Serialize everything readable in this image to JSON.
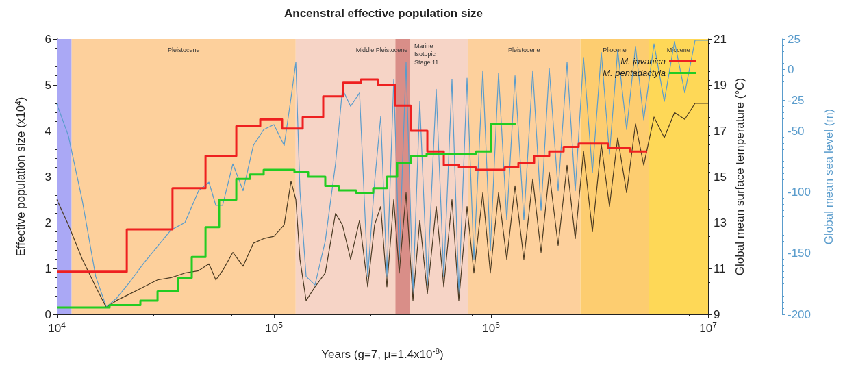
{
  "chart_data": {
    "type": "step",
    "title": "Ancenstral effective population size",
    "xlabel": "Years (g=7, μ=1.4x10$^{-8}$)",
    "ylabel": "Effective population size (x10$^{4}$)",
    "y2label": "Global mean surface temperature (°C)",
    "y3label": "Global mean sea level (m)",
    "log": "x",
    "xlim": [
      10000,
      10000000
    ],
    "xticks": [
      {
        "value": 10000,
        "label": "10$^{4}$"
      },
      {
        "value": 100000,
        "label": "10$^{5}$"
      },
      {
        "value": 1000000,
        "label": "10$^{6}$"
      },
      {
        "value": 10000000,
        "label": "10$^{7}$"
      }
    ],
    "ylim": [
      0,
      6
    ],
    "yticks": [
      0,
      1,
      2,
      3,
      4,
      5,
      6
    ],
    "y2lim": [
      9,
      21
    ],
    "y2ticks": [
      9,
      11,
      13,
      15,
      17,
      19,
      21
    ],
    "y3lim": [
      -200,
      25
    ],
    "y3ticks": [
      -200,
      -150,
      -100,
      -50,
      -25,
      0,
      25
    ],
    "grid": false,
    "legend": "top right",
    "bands": [
      {
        "axis": "x",
        "from": 10000,
        "to": 11700,
        "color": "#aaa8f5"
      },
      {
        "axis": "x",
        "from": 11700,
        "to": 126000,
        "label": "Pleistocene",
        "color": "#fdd09c"
      },
      {
        "axis": "x",
        "from": 126000,
        "to": 781000,
        "label": "Middle Pleistocene",
        "color": "#f6d4c6"
      },
      {
        "axis": "x",
        "from": 363000,
        "to": 424000,
        "label": "Marine Isotopic Stage 11",
        "color": "#d98e88"
      },
      {
        "axis": "x",
        "from": 781000,
        "to": 2580000,
        "label": "Pleistocene",
        "color": "#fdd09c"
      },
      {
        "axis": "x",
        "from": 2580000,
        "to": 5330000,
        "label": "Pliocene",
        "color": "#fdcd70"
      },
      {
        "axis": "x",
        "from": 5330000,
        "to": 10000000,
        "label": "Miocene",
        "color": "#fed857"
      }
    ],
    "series": [
      {
        "type": "line",
        "axis": "y3",
        "color": "#5a9ccc",
        "x": [
          10000,
          11300,
          13100,
          15100,
          16900,
          18800,
          21800,
          25200,
          33600,
          38900,
          45000,
          50200,
          54000,
          58000,
          64700,
          72100,
          80400,
          89700,
          100000,
          111500,
          119900,
          126200,
          131800,
          140700,
          154600,
          172400,
          192200,
          206800,
          225600,
          248000,
          270500,
          290900,
          310500,
          331500,
          356500,
          377800,
          406300,
          437000,
          469800,
          509000,
          559300,
          605900,
          661000,
          710700,
          775600,
          834000,
          916600,
          992600,
          1083000,
          1182000,
          1290000,
          1417000,
          1557000,
          1700000,
          1854000,
          2038000,
          2240000,
          2443000,
          2667000,
          2931000,
          3221000,
          3513000,
          3833000,
          4214000,
          4630000,
          5052000,
          5635000,
          6283000,
          7004000,
          7810000,
          8712000,
          10000000
        ],
        "values": [
          -28,
          -54,
          -107,
          -169,
          -194,
          -187,
          -173,
          -158,
          -131,
          -125,
          -99,
          -92,
          -111,
          -111,
          -77,
          -99,
          -62,
          -49,
          -45,
          -62,
          -23,
          6,
          -99,
          -169,
          -176,
          -140,
          -77,
          -16,
          -30,
          -19,
          -169,
          -92,
          -38,
          -169,
          -8,
          -155,
          6,
          -183,
          -26,
          -176,
          -16,
          -169,
          -8,
          -183,
          -7,
          -155,
          -1,
          -148,
          -3,
          -123,
          -5,
          -123,
          -1,
          -115,
          1,
          -99,
          6,
          -99,
          10,
          -84,
          14,
          -69,
          16,
          -49,
          19,
          -41,
          21,
          -26,
          23,
          -19,
          24,
          24
        ]
      },
      {
        "type": "line",
        "axis": "y2",
        "color": "#4a3a22",
        "x": [
          10000,
          11300,
          13100,
          15100,
          16900,
          18800,
          21800,
          25200,
          29100,
          33600,
          38900,
          45000,
          50200,
          54000,
          58000,
          64700,
          72100,
          80400,
          89700,
          100000,
          111500,
          119900,
          126200,
          131800,
          140700,
          154600,
          172400,
          192200,
          206800,
          225600,
          248000,
          270500,
          290900,
          310500,
          331500,
          356500,
          377800,
          406300,
          437000,
          469800,
          509000,
          559300,
          605900,
          661000,
          710700,
          775600,
          834000,
          916600,
          992600,
          1083000,
          1182000,
          1290000,
          1417000,
          1557000,
          1700000,
          1854000,
          2038000,
          2240000,
          2443000,
          2667000,
          2931000,
          3221000,
          3513000,
          3833000,
          4214000,
          4630000,
          5052000,
          5635000,
          6283000,
          7004000,
          7810000,
          8712000,
          10000000
        ],
        "values": [
          14.0,
          12.9,
          11.4,
          10.2,
          9.3,
          9.6,
          9.9,
          10.2,
          10.5,
          10.6,
          10.8,
          10.9,
          11.2,
          10.5,
          10.9,
          11.7,
          11.1,
          12.1,
          12.3,
          12.4,
          12.9,
          14.8,
          14.0,
          11.4,
          9.6,
          10.2,
          10.8,
          13.4,
          12.9,
          11.4,
          13.1,
          10.2,
          12.9,
          13.7,
          10.2,
          14.0,
          10.8,
          14.3,
          9.6,
          13.1,
          9.9,
          13.7,
          10.2,
          14.0,
          9.6,
          13.7,
          10.8,
          14.3,
          10.8,
          14.3,
          11.4,
          14.6,
          11.4,
          14.9,
          11.7,
          15.2,
          12.0,
          15.5,
          12.3,
          16.1,
          12.6,
          16.4,
          13.7,
          16.7,
          14.3,
          17.3,
          15.5,
          17.6,
          16.7,
          17.8,
          17.5,
          18.2,
          18.2
        ]
      },
      {
        "name": "M. javanica",
        "color": "#ee2020",
        "x": [
          10000,
          21000,
          34100,
          48400,
          67100,
          86500,
          109100,
          135700,
          168700,
          208300,
          251500,
          301600,
          361700,
          427500,
          509000,
          606000,
          711000,
          852000,
          1156000,
          1337000,
          1580000,
          1854000,
          2160000,
          2534000,
          3462000,
          4369000,
          5238000
        ],
        "values": [
          0.93,
          1.85,
          2.75,
          3.45,
          4.1,
          4.25,
          4.05,
          4.3,
          4.75,
          5.05,
          5.12,
          5.0,
          4.55,
          4.0,
          3.55,
          3.25,
          3.2,
          3.15,
          3.2,
          3.3,
          3.45,
          3.55,
          3.65,
          3.72,
          3.62,
          3.55,
          3.55
        ]
      },
      {
        "name": "M. pentadactyla",
        "color": "#22cc22",
        "x": [
          10000,
          17500,
          24260,
          29100,
          36180,
          41830,
          48400,
          55920,
          67100,
          77560,
          89700,
          124300,
          143800,
          172400,
          199400,
          239100,
          286700,
          331500,
          369700,
          427500,
          505200,
          852000,
          1000000,
          1299000
        ],
        "values": [
          0.15,
          0.2,
          0.3,
          0.5,
          0.8,
          1.25,
          1.9,
          2.5,
          2.95,
          3.05,
          3.15,
          3.1,
          3.0,
          2.8,
          2.7,
          2.65,
          2.75,
          3.0,
          3.3,
          3.45,
          3.5,
          3.55,
          4.15,
          4.15
        ]
      }
    ]
  }
}
